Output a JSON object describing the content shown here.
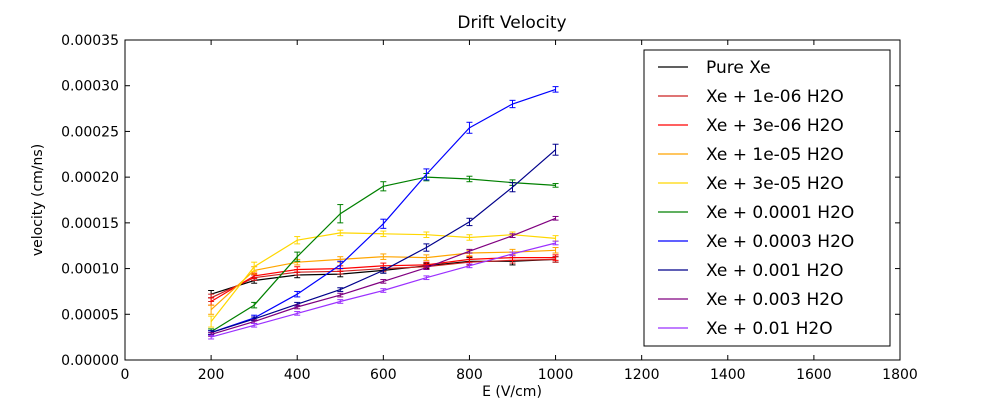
{
  "chart_data": {
    "type": "line",
    "title": "Drift Velocity",
    "xlabel": "E (V/cm)",
    "ylabel": "velocity (cm/ns)",
    "xlim": [
      0,
      1800
    ],
    "ylim": [
      0,
      0.00035
    ],
    "x_ticks": [
      0,
      200,
      400,
      600,
      800,
      1000,
      1200,
      1400,
      1600,
      1800
    ],
    "x_tick_labels": [
      "0",
      "200",
      "400",
      "600",
      "800",
      "1000",
      "1200",
      "1400",
      "1600",
      "1800"
    ],
    "y_ticks": [
      0,
      5e-05,
      0.0001,
      0.00015,
      0.0002,
      0.00025,
      0.0003,
      0.00035
    ],
    "y_tick_labels": [
      "0.00000",
      "0.00005",
      "0.00010",
      "0.00015",
      "0.00020",
      "0.00025",
      "0.00030",
      "0.00035"
    ],
    "grid": false,
    "legend_position": "right",
    "x": [
      200,
      300,
      400,
      500,
      600,
      700,
      800,
      900,
      1000
    ],
    "series": [
      {
        "name": "Pure Xe",
        "color": "#000000",
        "values": [
          7.2e-05,
          8.7e-05,
          9.3e-05,
          9.4e-05,
          9.8e-05,
          0.000103,
          0.000108,
          0.000108,
          0.00011
        ],
        "errors": [
          4e-06,
          3e-06,
          3e-06,
          3e-06,
          3e-06,
          3e-06,
          4e-06,
          4e-06,
          3e-06
        ]
      },
      {
        "name": "Xe + 1e-06 H2O",
        "color": "#cc2222",
        "values": [
          6.8e-05,
          9e-05,
          9.6e-05,
          9.7e-05,
          0.0001,
          0.000102,
          0.000107,
          0.000109,
          0.00011
        ],
        "errors": [
          4e-06,
          3e-06,
          3e-06,
          3e-06,
          3e-06,
          3e-06,
          3e-06,
          3e-06,
          3e-06
        ]
      },
      {
        "name": "Xe + 3e-06 H2O",
        "color": "#ff0000",
        "values": [
          6.4e-05,
          9.2e-05,
          9.9e-05,
          0.0001,
          0.000103,
          0.000104,
          0.00011,
          0.000112,
          0.000112
        ],
        "errors": [
          4e-06,
          3e-06,
          3e-06,
          3e-06,
          3e-06,
          3e-06,
          3e-06,
          3e-06,
          3e-06
        ]
      },
      {
        "name": "Xe + 1e-05 H2O",
        "color": "#ffa500",
        "values": [
          5.5e-05,
          9.8e-05,
          0.000107,
          0.00011,
          0.000113,
          0.000112,
          0.000117,
          0.000118,
          0.00012
        ],
        "errors": [
          5e-06,
          4e-06,
          3e-06,
          3e-06,
          3e-06,
          3e-06,
          3e-06,
          3e-06,
          3e-06
        ]
      },
      {
        "name": "Xe + 3e-05 H2O",
        "color": "#ffd700",
        "values": [
          4.2e-05,
          0.000102,
          0.000131,
          0.000139,
          0.000138,
          0.000137,
          0.000134,
          0.000137,
          0.000133
        ],
        "errors": [
          6e-06,
          5e-06,
          4e-06,
          3e-06,
          3e-06,
          3e-06,
          3e-06,
          3e-06,
          3e-06
        ]
      },
      {
        "name": "Xe + 0.0001 H2O",
        "color": "#008000",
        "values": [
          3.1e-05,
          6e-05,
          0.000113,
          0.00016,
          0.00019,
          0.0002,
          0.000198,
          0.000194,
          0.000191
        ],
        "errors": [
          3e-06,
          3e-06,
          5e-06,
          1e-05,
          5e-06,
          4e-06,
          3e-06,
          3e-06,
          2e-06
        ]
      },
      {
        "name": "Xe + 0.0003 H2O",
        "color": "#0000ff",
        "values": [
          3e-05,
          4.6e-05,
          7.2e-05,
          0.000104,
          0.000149,
          0.000203,
          0.000254,
          0.00028,
          0.000296
        ],
        "errors": [
          2e-06,
          3e-06,
          3e-06,
          4e-06,
          5e-06,
          6e-06,
          6e-06,
          4e-06,
          3e-06
        ]
      },
      {
        "name": "Xe + 0.001 H2O",
        "color": "#00008b",
        "values": [
          3e-05,
          4.5e-05,
          6.1e-05,
          7.7e-05,
          9.8e-05,
          0.000123,
          0.000151,
          0.000189,
          0.00023
        ],
        "errors": [
          2e-06,
          2e-06,
          2e-06,
          2e-06,
          3e-06,
          4e-06,
          4e-06,
          5e-06,
          6e-06
        ]
      },
      {
        "name": "Xe + 0.003 H2O",
        "color": "#800080",
        "values": [
          2.8e-05,
          4.2e-05,
          5.8e-05,
          7.1e-05,
          8.6e-05,
          0.000101,
          0.000119,
          0.000136,
          0.000155
        ],
        "errors": [
          2e-06,
          2e-06,
          2e-06,
          2e-06,
          2e-06,
          2e-06,
          2e-06,
          2e-06,
          2e-06
        ]
      },
      {
        "name": "Xe + 0.01 H2O",
        "color": "#9b30ff",
        "values": [
          2.5e-05,
          3.8e-05,
          5.1e-05,
          6.4e-05,
          7.6e-05,
          9e-05,
          0.000103,
          0.000116,
          0.000128
        ],
        "errors": [
          2e-06,
          2e-06,
          2e-06,
          2e-06,
          2e-06,
          2e-06,
          2e-06,
          2e-06,
          2e-06
        ]
      }
    ]
  }
}
